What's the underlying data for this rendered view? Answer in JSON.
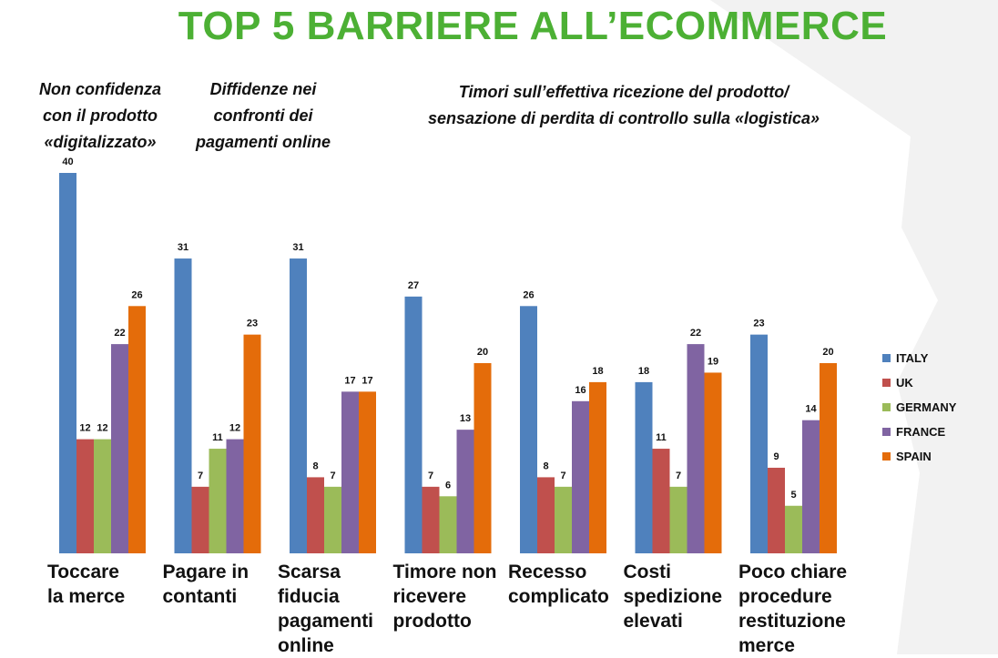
{
  "title": "TOP 5 BARRIERE ALL’ECOMMERCE",
  "group_notes": [
    "Non confidenza\ncon il prodotto\n«digitalizzato»",
    "Diffidenze nei\nconfronti dei\npagamenti online",
    "Timori sull’effettiva ricezione del prodotto/\nsensazione di perdita di controllo sulla «logistica»"
  ],
  "chart_data": {
    "type": "bar",
    "categories": [
      "Toccare\nla merce",
      "Pagare in\ncontanti",
      "Scarsa\nfiducia\npagamenti\nonline",
      "Timore non\nricevere\nprodotto",
      "Recesso\ncomplicato",
      "Costi\nspedizione\nelevati",
      "Poco chiare\nprocedure\nrestituzione\nmerce"
    ],
    "series": [
      {
        "name": "ITALY",
        "color": "#4f81bd",
        "values": [
          40,
          31,
          31,
          27,
          26,
          18,
          23
        ]
      },
      {
        "name": "UK",
        "color": "#c0504d",
        "values": [
          12,
          7,
          8,
          7,
          8,
          11,
          9
        ]
      },
      {
        "name": "GERMANY",
        "color": "#9bbb59",
        "values": [
          12,
          11,
          7,
          6,
          7,
          7,
          5
        ]
      },
      {
        "name": "FRANCE",
        "color": "#8064a2",
        "values": [
          22,
          12,
          17,
          13,
          16,
          22,
          14
        ]
      },
      {
        "name": "SPAIN",
        "color": "#e46c0a",
        "values": [
          26,
          23,
          17,
          20,
          18,
          19,
          20
        ]
      }
    ],
    "ylim": [
      0,
      40
    ],
    "data_labels": true,
    "legend_position": "right",
    "grid": false
  }
}
